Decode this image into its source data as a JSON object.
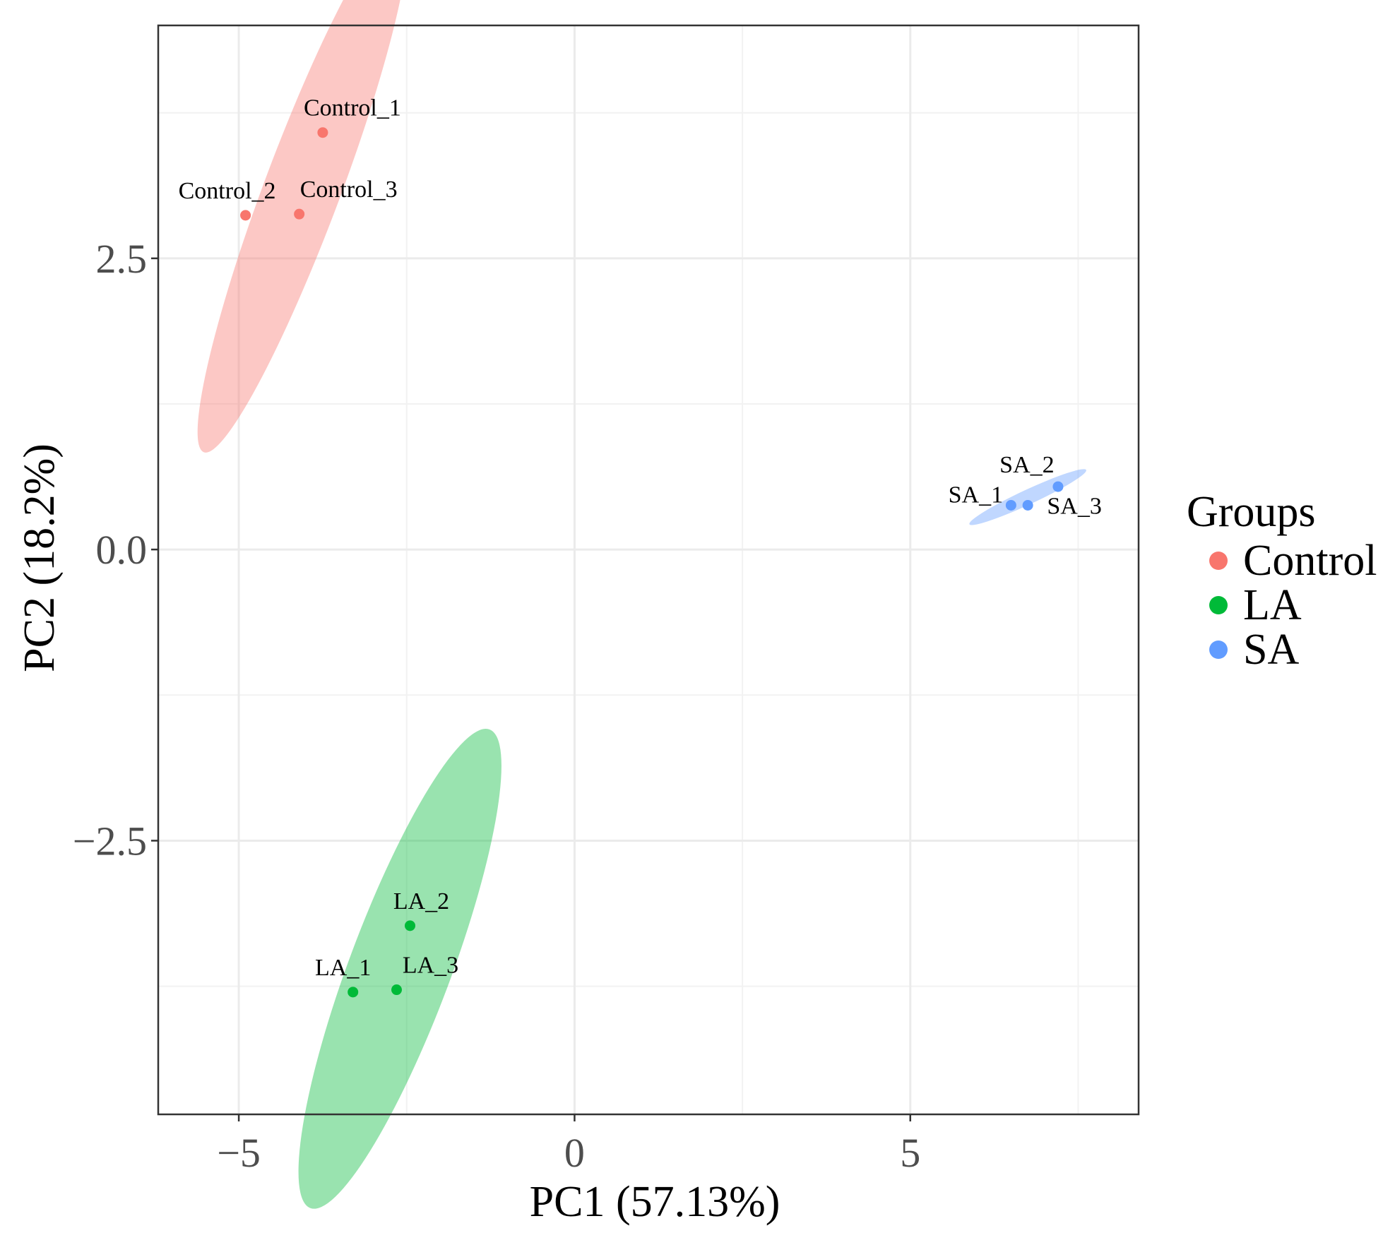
{
  "chart_data": {
    "type": "scatter",
    "xlabel": "PC1 (57.13%)",
    "ylabel": "PC2 (18.2%)",
    "xlim": [
      -6.2,
      8.4
    ],
    "ylim": [
      -4.85,
      4.5
    ],
    "x_ticks": [
      {
        "v": -5,
        "label": "−5"
      },
      {
        "v": 0,
        "label": "0"
      },
      {
        "v": 5,
        "label": "5"
      }
    ],
    "y_ticks": [
      {
        "v": 2.5,
        "label": "2.5"
      },
      {
        "v": 0,
        "label": "0.0"
      },
      {
        "v": -2.5,
        "label": "−2.5"
      }
    ],
    "x_minor": [
      -7.5,
      -2.5,
      2.5,
      7.5
    ],
    "y_minor": [
      3.75,
      1.25,
      -1.25,
      -3.75
    ],
    "legend": {
      "title": "Groups",
      "position": "right"
    },
    "series": [
      {
        "name": "Control",
        "color": "#F8766D",
        "ellipse": {
          "cx": -4.05,
          "cy": 3.1,
          "rx": 2.7,
          "ry": 0.45,
          "angle_deg": 57
        },
        "points": [
          {
            "label": "Control_1",
            "x": -3.75,
            "y": 3.58
          },
          {
            "label": "Control_2",
            "x": -4.9,
            "y": 2.87
          },
          {
            "label": "Control_3",
            "x": -4.1,
            "y": 2.88
          }
        ]
      },
      {
        "name": "LA",
        "color": "#00BA38",
        "ellipse": {
          "cx": -2.6,
          "cy": -3.6,
          "rx": 2.45,
          "ry": 0.6,
          "angle_deg": 57
        },
        "points": [
          {
            "label": "LA_1",
            "x": -3.3,
            "y": -3.8
          },
          {
            "label": "LA_2",
            "x": -2.45,
            "y": -3.23
          },
          {
            "label": "LA_3",
            "x": -2.65,
            "y": -3.78
          }
        ]
      },
      {
        "name": "SA",
        "color": "#619CFF",
        "ellipse": {
          "cx": 6.75,
          "cy": 0.45,
          "rx": 0.9,
          "ry": 0.065,
          "angle_deg": 15
        },
        "points": [
          {
            "label": "SA_1",
            "x": 6.5,
            "y": 0.38
          },
          {
            "label": "SA_2",
            "x": 7.2,
            "y": 0.54
          },
          {
            "label": "SA_3",
            "x": 6.75,
            "y": 0.38
          }
        ]
      }
    ]
  }
}
